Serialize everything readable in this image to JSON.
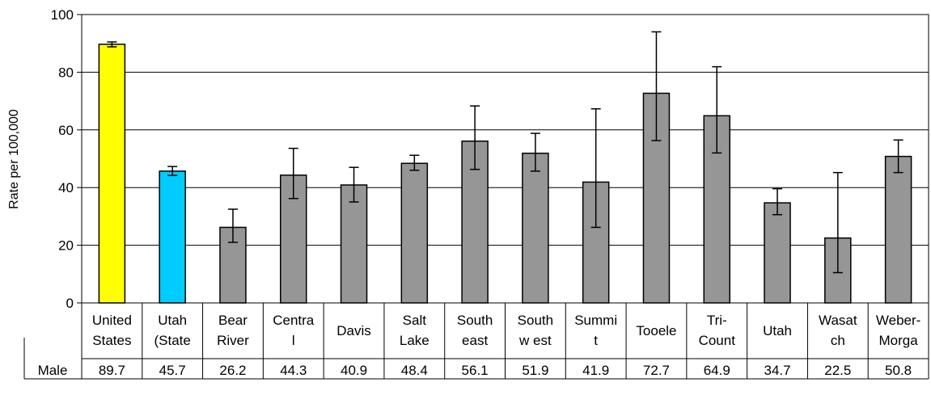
{
  "chart_data": {
    "type": "bar",
    "ylabel": "Rate per 100,000",
    "ylim": [
      0,
      100
    ],
    "yticks": [
      0,
      20,
      40,
      60,
      80,
      100
    ],
    "grid": true,
    "categories": [
      [
        "United",
        "States"
      ],
      [
        "Utah",
        "(State"
      ],
      [
        "Bear",
        "River"
      ],
      [
        "Centra",
        "l"
      ],
      [
        "Davis"
      ],
      [
        "Salt",
        "Lake"
      ],
      [
        "South",
        "east"
      ],
      [
        "South",
        "w est"
      ],
      [
        "Summi",
        "t"
      ],
      [
        "Tooele"
      ],
      [
        "Tri-",
        "Count"
      ],
      [
        "Utah"
      ],
      [
        "Wasat",
        "ch"
      ],
      [
        "Weber-",
        "Morga"
      ]
    ],
    "series": [
      {
        "name": "Male",
        "values": [
          89.7,
          45.7,
          26.2,
          44.3,
          40.9,
          48.4,
          56.1,
          51.9,
          41.9,
          72.7,
          64.9,
          34.7,
          22.5,
          50.8
        ],
        "value_labels": [
          "89.7",
          "45.7",
          "26.2",
          "44.3",
          "40.9",
          "48.4",
          "56.1",
          "51.9",
          "41.9",
          "72.7",
          "64.9",
          "34.7",
          "22.5",
          "50.8"
        ],
        "error_low": [
          88.8,
          44.2,
          21.0,
          36.2,
          35.0,
          46.0,
          46.3,
          45.7,
          26.2,
          56.3,
          52.0,
          30.6,
          10.5,
          45.2
        ],
        "error_high": [
          90.5,
          47.3,
          32.5,
          53.6,
          47.0,
          51.2,
          68.3,
          58.8,
          67.3,
          94.0,
          81.9,
          39.6,
          45.2,
          56.5
        ],
        "colors": [
          "#ffff00",
          "#00ccff",
          "#969696",
          "#969696",
          "#969696",
          "#969696",
          "#969696",
          "#969696",
          "#969696",
          "#969696",
          "#969696",
          "#969696",
          "#969696",
          "#969696"
        ]
      }
    ]
  }
}
